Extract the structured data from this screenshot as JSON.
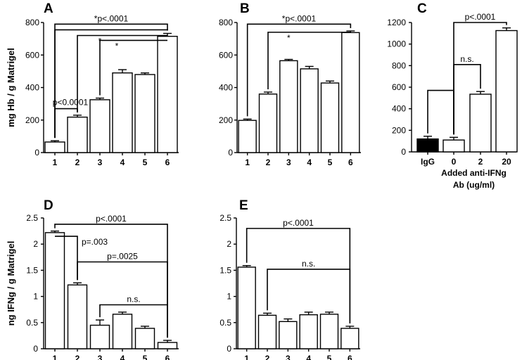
{
  "chart_data": [
    {
      "id": "A",
      "type": "bar",
      "label": "A",
      "ylabel": "mg Hb / g Matrigel",
      "ylim": [
        0,
        800
      ],
      "yticks": [
        0,
        200,
        400,
        600,
        800
      ],
      "categories": [
        "1",
        "2",
        "3",
        "4",
        "5",
        "6"
      ],
      "values": [
        65,
        218,
        325,
        490,
        480,
        715
      ],
      "errors": [
        8,
        12,
        10,
        20,
        10,
        18
      ],
      "bar_colors": [
        "#ffffff",
        "#ffffff",
        "#ffffff",
        "#ffffff",
        "#ffffff",
        "#ffffff"
      ],
      "annotations": [
        {
          "from": 0,
          "to": 5,
          "level": 790,
          "text": "*p<.0001",
          "pos": "mid"
        },
        {
          "from": 0,
          "to": 5,
          "level": 755,
          "text": "",
          "pos": "mid"
        },
        {
          "from": 1,
          "to": 5,
          "level": 720,
          "text": "*",
          "pos": "left"
        },
        {
          "from": 2,
          "to": 5,
          "level": 690,
          "text": "*",
          "pos": "left"
        },
        {
          "from": 0,
          "to": 1,
          "level": 270,
          "text": "p<0.0001",
          "pos": "above"
        }
      ]
    },
    {
      "id": "B",
      "type": "bar",
      "label": "B",
      "ylabel": "",
      "ylim": [
        0,
        800
      ],
      "yticks": [
        0,
        200,
        400,
        600,
        800
      ],
      "categories": [
        "1",
        "2",
        "3",
        "4",
        "5",
        "6"
      ],
      "values": [
        198,
        360,
        565,
        515,
        428,
        738
      ],
      "errors": [
        8,
        12,
        8,
        15,
        12,
        10
      ],
      "bar_colors": [
        "#ffffff",
        "#ffffff",
        "#ffffff",
        "#ffffff",
        "#ffffff",
        "#ffffff"
      ],
      "annotations": [
        {
          "from": 0,
          "to": 5,
          "level": 790,
          "text": "*p<.0001",
          "pos": "mid"
        },
        {
          "from": 1,
          "to": 5,
          "level": 740,
          "text": "*",
          "pos": "left"
        }
      ]
    },
    {
      "id": "C",
      "type": "bar",
      "label": "C",
      "ylabel": "",
      "xlabel": "Added anti-IFNg Ab (ug/ml)",
      "xlabel_lines": [
        "Added anti-IFNg",
        "Ab (ug/ml)"
      ],
      "ylim": [
        0,
        1200
      ],
      "yticks": [
        0,
        200,
        400,
        600,
        800,
        1000,
        1200
      ],
      "categories": [
        "IgG",
        "0",
        "2",
        "20"
      ],
      "values": [
        120,
        110,
        535,
        1125
      ],
      "errors": [
        25,
        25,
        25,
        25
      ],
      "bar_colors": [
        "#000000",
        "#ffffff",
        "#ffffff",
        "#ffffff"
      ],
      "annotations": [
        {
          "from": 1,
          "to": 3,
          "level": 1200,
          "text": "p<.0001",
          "pos": "mid"
        },
        {
          "from": 1,
          "to": 2,
          "level": 810,
          "text": "n.s.",
          "pos": "mid"
        },
        {
          "from": 0,
          "to": 1,
          "level": 570,
          "text": "",
          "pos": "mid"
        }
      ]
    },
    {
      "id": "D",
      "type": "bar",
      "label": "D",
      "ylabel": "ng IFNg / g Matrigel",
      "ylim": [
        0,
        2.5
      ],
      "yticks": [
        0,
        0.5,
        1,
        1.5,
        2,
        2.5
      ],
      "ytick_labels": [
        "0",
        "0.5",
        "1",
        "1.5",
        "2",
        "2.5"
      ],
      "categories": [
        "1",
        "2",
        "3",
        "4",
        "5",
        "6"
      ],
      "values": [
        2.22,
        1.22,
        0.45,
        0.66,
        0.39,
        0.12
      ],
      "errors": [
        0.03,
        0.04,
        0.1,
        0.04,
        0.04,
        0.04
      ],
      "bar_colors": [
        "#ffffff",
        "#ffffff",
        "#ffffff",
        "#ffffff",
        "#ffffff",
        "#ffffff"
      ],
      "annotations": [
        {
          "from": 0,
          "to": 5,
          "level": 2.38,
          "text": "p<.0001",
          "pos": "mid"
        },
        {
          "from": 0,
          "to": 1,
          "level": 2.15,
          "text": "p=.003",
          "pos": "below"
        },
        {
          "from": 1,
          "to": 5,
          "level": 1.66,
          "text": "p=.0025",
          "pos": "mid"
        },
        {
          "from": 2,
          "to": 5,
          "level": 0.84,
          "text": "n.s.",
          "pos": "mid"
        }
      ]
    },
    {
      "id": "E",
      "type": "bar",
      "label": "E",
      "ylabel": "",
      "ylim": [
        0,
        2.5
      ],
      "yticks": [
        0,
        0.5,
        1,
        1.5,
        2,
        2.5
      ],
      "ytick_labels": [
        "0",
        "0.5",
        "1",
        "1.5",
        "2",
        "2.5"
      ],
      "categories": [
        "1",
        "2",
        "3",
        "4",
        "5",
        "6"
      ],
      "values": [
        1.56,
        0.64,
        0.52,
        0.65,
        0.66,
        0.39
      ],
      "errors": [
        0.03,
        0.04,
        0.05,
        0.05,
        0.04,
        0.04
      ],
      "bar_colors": [
        "#ffffff",
        "#ffffff",
        "#ffffff",
        "#ffffff",
        "#ffffff",
        "#ffffff"
      ],
      "annotations": [
        {
          "from": 0,
          "to": 5,
          "level": 2.3,
          "text": "p<.0001",
          "pos": "mid"
        },
        {
          "from": 1,
          "to": 5,
          "level": 1.52,
          "text": "n.s.",
          "pos": "mid"
        }
      ]
    }
  ]
}
